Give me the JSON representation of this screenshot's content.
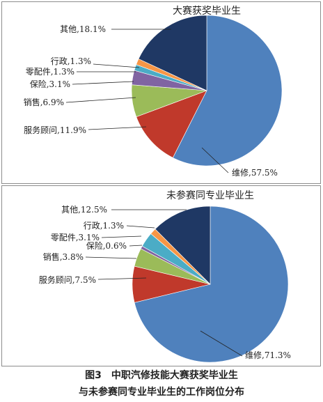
{
  "chart_data": [
    {
      "type": "pie",
      "title": "大赛获奖毕业生",
      "slices": [
        {
          "name": "维修",
          "value": 57.5,
          "label": "维修,57.5%",
          "color": "#4f81bd"
        },
        {
          "name": "服务顾问",
          "value": 11.9,
          "label": "服务顾问,11.9%",
          "color": "#c0392b"
        },
        {
          "name": "销售",
          "value": 6.9,
          "label": "销售,6.9%",
          "color": "#9bbb59"
        },
        {
          "name": "保险",
          "value": 3.1,
          "label": "保险,3.1%",
          "color": "#8064a2"
        },
        {
          "name": "零配件",
          "value": 1.3,
          "label": "零配件,1.3%",
          "color": "#4bacc6"
        },
        {
          "name": "行政",
          "value": 1.3,
          "label": "行政,1.3%",
          "color": "#f79646"
        },
        {
          "name": "其他",
          "value": 18.1,
          "label": "其他,18.1%",
          "color": "#1f3864"
        }
      ]
    },
    {
      "type": "pie",
      "title": "未参赛同专业毕业生",
      "slices": [
        {
          "name": "维修",
          "value": 71.3,
          "label": "维修,71.3%",
          "color": "#4f81bd"
        },
        {
          "name": "服务顾问",
          "value": 7.5,
          "label": "服务顾问,7.5%",
          "color": "#c0392b"
        },
        {
          "name": "销售",
          "value": 3.8,
          "label": "销售,3.8%",
          "color": "#9bbb59"
        },
        {
          "name": "保险",
          "value": 0.6,
          "label": "保险,0.6%",
          "color": "#8064a2"
        },
        {
          "name": "零配件",
          "value": 3.1,
          "label": "零配件,3.1%",
          "color": "#4bacc6"
        },
        {
          "name": "行政",
          "value": 1.3,
          "label": "行政,1.3%",
          "color": "#f79646"
        },
        {
          "name": "其他",
          "value": 12.5,
          "label": "其他,12.5%",
          "color": "#1f3864"
        }
      ]
    }
  ],
  "caption": {
    "line1": "图3　中职汽修技能大赛获奖毕业生",
    "line2": "与未参赛同专业毕业生的工作岗位分布"
  }
}
